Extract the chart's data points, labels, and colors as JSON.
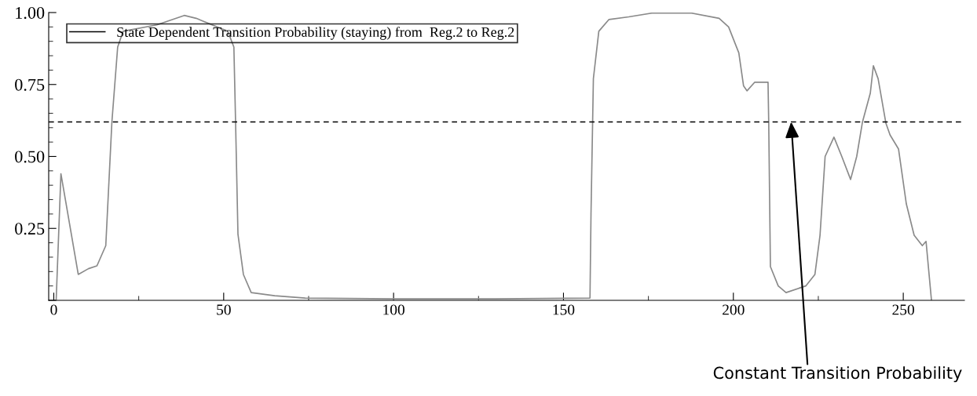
{
  "chart_data": {
    "type": "line",
    "xlim": [
      -1.5,
      268
    ],
    "ylim": [
      0,
      1.0
    ],
    "xticks": [
      0,
      50,
      100,
      150,
      200,
      250
    ],
    "yticks": [
      {
        "value": 0,
        "label": null
      },
      0.25,
      {
        "value": 0.5,
        "label": "0.50"
      },
      0.75,
      {
        "value": 1.0,
        "label": "1.00"
      }
    ],
    "legend": "top left",
    "grid": false,
    "marker": "none",
    "line_style": "solid",
    "series": [
      {
        "name": "State Dependent Transition Probability (staying) from  Reg.2 to Reg.2",
        "color": "#8a8a8a",
        "x": [
          0.7,
          2.1,
          7.2,
          10.2,
          12.7,
          15.3,
          17.1,
          18.8,
          20.4,
          30.3,
          38.4,
          41.9,
          51.2,
          53,
          53.5,
          54.2,
          55.8,
          58.1,
          65,
          74,
          100,
          130,
          157.8,
          158.1,
          158.8,
          160.4,
          163.4,
          169.2,
          176,
          187.7,
          195.8,
          198.6,
          201.6,
          203,
          204,
          206.3,
          210.2,
          210.4,
          210.9,
          213.2,
          215.5,
          221.3,
          224,
          225.5,
          227,
          229.6,
          231.9,
          234.5,
          236.3,
          238,
          240.3,
          241.2,
          242.6,
          244.9,
          246.1,
          248.6,
          250.9,
          253.2,
          255.6,
          256.7,
          258.3
        ],
        "values": [
          0,
          0.44,
          0.09,
          0.11,
          0.12,
          0.19,
          0.62,
          0.88,
          0.935,
          0.957,
          0.99,
          0.98,
          0.935,
          0.88,
          0.62,
          0.23,
          0.09,
          0.027,
          0.016,
          0.008,
          0.005,
          0.005,
          0.008,
          0.3,
          0.77,
          0.935,
          0.976,
          0.985,
          0.998,
          0.998,
          0.98,
          0.95,
          0.86,
          0.745,
          0.728,
          0.758,
          0.758,
          0.62,
          0.117,
          0.05,
          0.027,
          0.05,
          0.09,
          0.226,
          0.5,
          0.567,
          0.5,
          0.42,
          0.5,
          0.62,
          0.72,
          0.815,
          0.77,
          0.615,
          0.575,
          0.526,
          0.335,
          0.226,
          0.19,
          0.205,
          0
        ]
      }
    ],
    "ref_lines": [
      {
        "axis": "y",
        "value": 0.62,
        "color": "#000000",
        "line_style": "dashed"
      }
    ],
    "annotations": [
      {
        "text": "Constant Transition Probability",
        "x": 217,
        "y": 0.62
      }
    ]
  }
}
